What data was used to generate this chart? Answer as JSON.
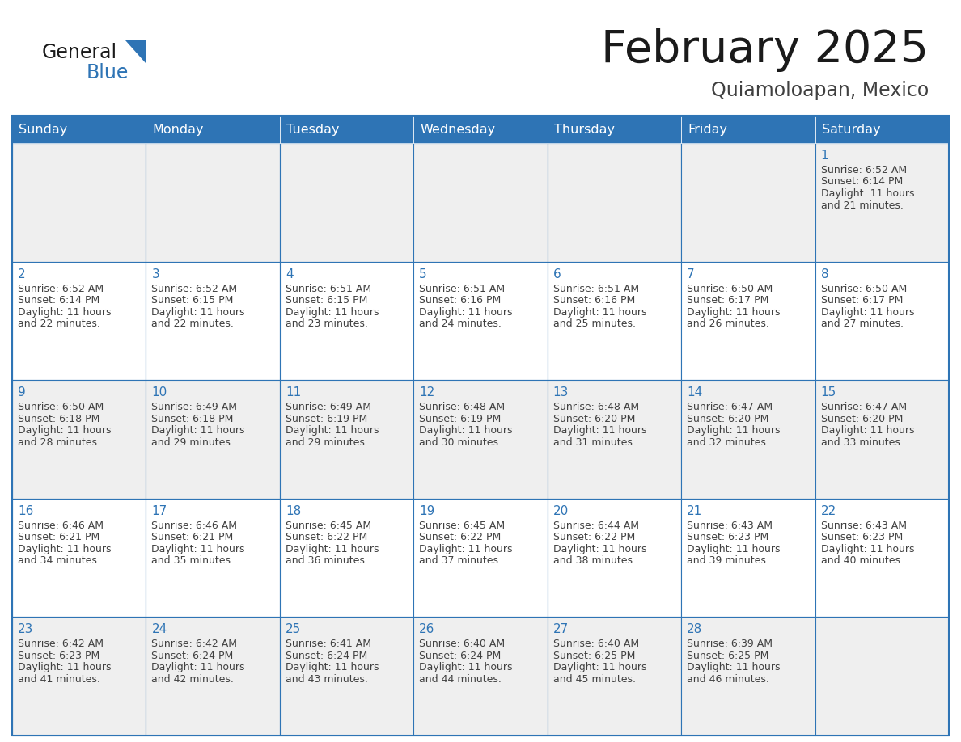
{
  "title": "February 2025",
  "subtitle": "Quiamoloapan, Mexico",
  "days_of_week": [
    "Sunday",
    "Monday",
    "Tuesday",
    "Wednesday",
    "Thursday",
    "Friday",
    "Saturday"
  ],
  "header_bg": "#2E74B5",
  "header_text_color": "#FFFFFF",
  "cell_bg_odd": "#EFEFEF",
  "cell_bg_even": "#FFFFFF",
  "cell_border_color": "#2E74B5",
  "day_num_color": "#2E74B5",
  "text_color": "#404040",
  "title_color": "#1a1a1a",
  "subtitle_color": "#404040",
  "logo_general_color": "#1a1a1a",
  "logo_blue_color": "#2E74B5",
  "weeks": [
    [
      {
        "day": null,
        "sunrise": null,
        "sunset": null,
        "daylight_h": null,
        "daylight_m": null
      },
      {
        "day": null,
        "sunrise": null,
        "sunset": null,
        "daylight_h": null,
        "daylight_m": null
      },
      {
        "day": null,
        "sunrise": null,
        "sunset": null,
        "daylight_h": null,
        "daylight_m": null
      },
      {
        "day": null,
        "sunrise": null,
        "sunset": null,
        "daylight_h": null,
        "daylight_m": null
      },
      {
        "day": null,
        "sunrise": null,
        "sunset": null,
        "daylight_h": null,
        "daylight_m": null
      },
      {
        "day": null,
        "sunrise": null,
        "sunset": null,
        "daylight_h": null,
        "daylight_m": null
      },
      {
        "day": 1,
        "sunrise": "6:52 AM",
        "sunset": "6:14 PM",
        "daylight_h": "11 hours",
        "daylight_m": "21 minutes."
      }
    ],
    [
      {
        "day": 2,
        "sunrise": "6:52 AM",
        "sunset": "6:14 PM",
        "daylight_h": "11 hours",
        "daylight_m": "22 minutes."
      },
      {
        "day": 3,
        "sunrise": "6:52 AM",
        "sunset": "6:15 PM",
        "daylight_h": "11 hours",
        "daylight_m": "22 minutes."
      },
      {
        "day": 4,
        "sunrise": "6:51 AM",
        "sunset": "6:15 PM",
        "daylight_h": "11 hours",
        "daylight_m": "23 minutes."
      },
      {
        "day": 5,
        "sunrise": "6:51 AM",
        "sunset": "6:16 PM",
        "daylight_h": "11 hours",
        "daylight_m": "24 minutes."
      },
      {
        "day": 6,
        "sunrise": "6:51 AM",
        "sunset": "6:16 PM",
        "daylight_h": "11 hours",
        "daylight_m": "25 minutes."
      },
      {
        "day": 7,
        "sunrise": "6:50 AM",
        "sunset": "6:17 PM",
        "daylight_h": "11 hours",
        "daylight_m": "26 minutes."
      },
      {
        "day": 8,
        "sunrise": "6:50 AM",
        "sunset": "6:17 PM",
        "daylight_h": "11 hours",
        "daylight_m": "27 minutes."
      }
    ],
    [
      {
        "day": 9,
        "sunrise": "6:50 AM",
        "sunset": "6:18 PM",
        "daylight_h": "11 hours",
        "daylight_m": "28 minutes."
      },
      {
        "day": 10,
        "sunrise": "6:49 AM",
        "sunset": "6:18 PM",
        "daylight_h": "11 hours",
        "daylight_m": "29 minutes."
      },
      {
        "day": 11,
        "sunrise": "6:49 AM",
        "sunset": "6:19 PM",
        "daylight_h": "11 hours",
        "daylight_m": "29 minutes."
      },
      {
        "day": 12,
        "sunrise": "6:48 AM",
        "sunset": "6:19 PM",
        "daylight_h": "11 hours",
        "daylight_m": "30 minutes."
      },
      {
        "day": 13,
        "sunrise": "6:48 AM",
        "sunset": "6:20 PM",
        "daylight_h": "11 hours",
        "daylight_m": "31 minutes."
      },
      {
        "day": 14,
        "sunrise": "6:47 AM",
        "sunset": "6:20 PM",
        "daylight_h": "11 hours",
        "daylight_m": "32 minutes."
      },
      {
        "day": 15,
        "sunrise": "6:47 AM",
        "sunset": "6:20 PM",
        "daylight_h": "11 hours",
        "daylight_m": "33 minutes."
      }
    ],
    [
      {
        "day": 16,
        "sunrise": "6:46 AM",
        "sunset": "6:21 PM",
        "daylight_h": "11 hours",
        "daylight_m": "34 minutes."
      },
      {
        "day": 17,
        "sunrise": "6:46 AM",
        "sunset": "6:21 PM",
        "daylight_h": "11 hours",
        "daylight_m": "35 minutes."
      },
      {
        "day": 18,
        "sunrise": "6:45 AM",
        "sunset": "6:22 PM",
        "daylight_h": "11 hours",
        "daylight_m": "36 minutes."
      },
      {
        "day": 19,
        "sunrise": "6:45 AM",
        "sunset": "6:22 PM",
        "daylight_h": "11 hours",
        "daylight_m": "37 minutes."
      },
      {
        "day": 20,
        "sunrise": "6:44 AM",
        "sunset": "6:22 PM",
        "daylight_h": "11 hours",
        "daylight_m": "38 minutes."
      },
      {
        "day": 21,
        "sunrise": "6:43 AM",
        "sunset": "6:23 PM",
        "daylight_h": "11 hours",
        "daylight_m": "39 minutes."
      },
      {
        "day": 22,
        "sunrise": "6:43 AM",
        "sunset": "6:23 PM",
        "daylight_h": "11 hours",
        "daylight_m": "40 minutes."
      }
    ],
    [
      {
        "day": 23,
        "sunrise": "6:42 AM",
        "sunset": "6:23 PM",
        "daylight_h": "11 hours",
        "daylight_m": "41 minutes."
      },
      {
        "day": 24,
        "sunrise": "6:42 AM",
        "sunset": "6:24 PM",
        "daylight_h": "11 hours",
        "daylight_m": "42 minutes."
      },
      {
        "day": 25,
        "sunrise": "6:41 AM",
        "sunset": "6:24 PM",
        "daylight_h": "11 hours",
        "daylight_m": "43 minutes."
      },
      {
        "day": 26,
        "sunrise": "6:40 AM",
        "sunset": "6:24 PM",
        "daylight_h": "11 hours",
        "daylight_m": "44 minutes."
      },
      {
        "day": 27,
        "sunrise": "6:40 AM",
        "sunset": "6:25 PM",
        "daylight_h": "11 hours",
        "daylight_m": "45 minutes."
      },
      {
        "day": 28,
        "sunrise": "6:39 AM",
        "sunset": "6:25 PM",
        "daylight_h": "11 hours",
        "daylight_m": "46 minutes."
      },
      {
        "day": null,
        "sunrise": null,
        "sunset": null,
        "daylight_h": null,
        "daylight_m": null
      }
    ]
  ]
}
